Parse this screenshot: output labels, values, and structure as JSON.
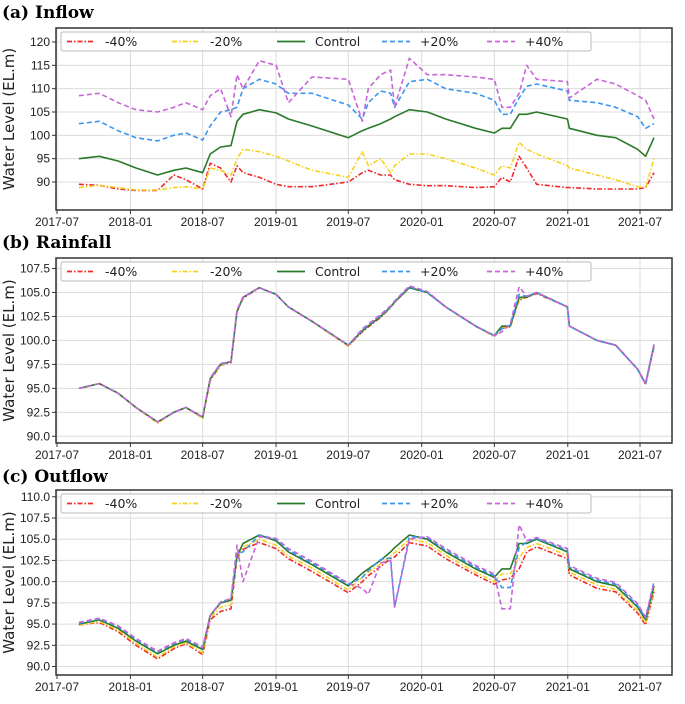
{
  "chart_data": [
    {
      "type": "line",
      "title": "(a) Inflow",
      "ylabel": "Water Level (EL.m)",
      "xlabel": "",
      "ylim": [
        84,
        123
      ],
      "yticks": [
        "90",
        "95",
        "100",
        "105",
        "110",
        "115",
        "120"
      ],
      "xticks": [
        "2017-07",
        "2018-01",
        "2018-07",
        "2019-01",
        "2019-07",
        "2020-01",
        "2020-07",
        "2021-01",
        "2021-07"
      ],
      "grid": true,
      "legend": "top-left",
      "x": [
        "2017-08-25",
        "2017-10-15",
        "2017-12-01",
        "2018-01-15",
        "2018-03-10",
        "2018-04-20",
        "2018-05-20",
        "2018-07-01",
        "2018-07-20",
        "2018-08-15",
        "2018-09-10",
        "2018-09-25",
        "2018-10-10",
        "2018-11-20",
        "2019-01-01",
        "2019-02-01",
        "2019-04-01",
        "2019-07-01",
        "2019-08-05",
        "2019-08-20",
        "2019-09-20",
        "2019-10-15",
        "2019-10-25",
        "2019-12-01",
        "2020-01-15",
        "2020-03-01",
        "2020-05-15",
        "2020-07-01",
        "2020-07-20",
        "2020-08-10",
        "2020-09-01",
        "2020-09-20",
        "2020-10-15",
        "2020-12-31",
        "2021-01-05",
        "2021-03-15",
        "2021-05-01",
        "2021-06-25",
        "2021-07-15",
        "2021-08-05"
      ],
      "series": [
        {
          "name": "-40%",
          "color": "#f0282a",
          "dash": "dashdot",
          "values": [
            89.5,
            89.3,
            88.5,
            88.2,
            88.2,
            91.5,
            90.5,
            88.5,
            94,
            93,
            90,
            93.5,
            92,
            91,
            89.5,
            89,
            89,
            90,
            92,
            92.5,
            91.5,
            91.5,
            90.5,
            89.5,
            89.2,
            89.2,
            88.8,
            89,
            91,
            90,
            95.5,
            93,
            89.5,
            88.8,
            88.8,
            88.5,
            88.5,
            88.5,
            88.8,
            92
          ]
        },
        {
          "name": "-20%",
          "color": "#f5d21c",
          "dash": "dashdot",
          "values": [
            88.8,
            89.3,
            88.8,
            88.3,
            88.3,
            88.8,
            89,
            88.5,
            93,
            92.5,
            91.5,
            95,
            97,
            96.5,
            95.5,
            94.5,
            92.5,
            91,
            96.5,
            93.5,
            95,
            92,
            93.5,
            96,
            96,
            95,
            93,
            91.5,
            93.5,
            93,
            98.5,
            97,
            96,
            93.5,
            93,
            91.5,
            90.5,
            89,
            88.8,
            95
          ]
        },
        {
          "name": "Control",
          "color": "#2a7a2a",
          "dash": "solid",
          "values": [
            95,
            95.5,
            94.5,
            93,
            91.5,
            92.5,
            93,
            92,
            96,
            97.5,
            97.8,
            103,
            104.5,
            105.5,
            104.8,
            103.5,
            102,
            99.5,
            101,
            101.5,
            102.5,
            103.5,
            104,
            105.5,
            105,
            103.5,
            101.5,
            100.5,
            101.5,
            101.5,
            104.5,
            104.5,
            105,
            103.5,
            101.5,
            100,
            99.5,
            97,
            95.5,
            99.5
          ]
        },
        {
          "name": "+20%",
          "color": "#3a96f0",
          "dash": "dashed",
          "values": [
            102.5,
            103,
            101,
            99.5,
            98.8,
            100,
            100.5,
            99,
            102,
            105,
            105.5,
            106,
            110,
            112,
            111,
            109,
            109,
            106.5,
            103.5,
            107,
            109.5,
            109,
            106,
            111.5,
            112,
            110,
            109,
            107.5,
            104.5,
            104.5,
            108,
            110.5,
            111,
            109.5,
            107.5,
            107,
            106,
            104,
            101.5,
            102.5
          ]
        },
        {
          "name": "+40%",
          "color": "#c865d8",
          "dash": "dashed",
          "values": [
            108.5,
            109,
            107,
            105.5,
            105,
            106,
            107,
            105.5,
            108.5,
            110,
            104,
            113,
            110,
            116,
            115,
            107,
            112.5,
            112,
            103,
            110,
            113,
            114,
            106,
            116.5,
            113,
            113,
            112.5,
            112,
            106,
            106,
            109,
            115,
            112,
            111.5,
            108,
            112,
            111,
            108.5,
            107.5,
            103.5
          ]
        }
      ]
    },
    {
      "type": "line",
      "title": "(b) Rainfall",
      "ylabel": "Water Level (EL.m)",
      "xlabel": "",
      "ylim": [
        89.3,
        108.6
      ],
      "yticks": [
        "90.0",
        "92.5",
        "95.0",
        "97.5",
        "100.0",
        "102.5",
        "105.0",
        "107.5"
      ],
      "xticks": [
        "2017-07",
        "2018-01",
        "2018-07",
        "2019-01",
        "2019-07",
        "2020-01",
        "2020-07",
        "2021-01",
        "2021-07"
      ],
      "grid": true,
      "legend": "top-left",
      "x": [
        "2017-08-25",
        "2017-10-15",
        "2017-12-01",
        "2018-01-15",
        "2018-03-10",
        "2018-04-20",
        "2018-05-20",
        "2018-07-01",
        "2018-07-20",
        "2018-08-15",
        "2018-09-10",
        "2018-09-25",
        "2018-10-10",
        "2018-11-20",
        "2019-01-01",
        "2019-02-01",
        "2019-04-01",
        "2019-07-01",
        "2019-08-05",
        "2019-08-20",
        "2019-09-20",
        "2019-10-15",
        "2019-10-25",
        "2019-12-01",
        "2020-01-15",
        "2020-03-01",
        "2020-05-15",
        "2020-07-01",
        "2020-07-20",
        "2020-08-10",
        "2020-09-01",
        "2020-09-20",
        "2020-10-15",
        "2020-12-31",
        "2021-01-05",
        "2021-03-15",
        "2021-05-01",
        "2021-06-25",
        "2021-07-15",
        "2021-08-05"
      ],
      "series": [
        {
          "name": "-40%",
          "color": "#f0282a",
          "dash": "dashdot",
          "values": [
            95,
            95.5,
            94.5,
            93,
            91.4,
            92.5,
            93,
            91.9,
            95.8,
            97.4,
            97.7,
            103,
            104.4,
            105.5,
            104.8,
            103.5,
            102,
            99.4,
            100.9,
            101.4,
            102.4,
            103.4,
            104,
            105.5,
            105,
            103.5,
            101.5,
            100.4,
            101.3,
            101.4,
            104.2,
            104.5,
            104.9,
            103.5,
            101.5,
            100,
            99.5,
            97,
            95.4,
            99.3
          ]
        },
        {
          "name": "-20%",
          "color": "#f5d21c",
          "dash": "dashdot",
          "values": [
            95,
            95.5,
            94.5,
            93,
            91.4,
            92.5,
            93,
            91.9,
            95.9,
            97.4,
            97.8,
            103,
            104.5,
            105.5,
            104.8,
            103.5,
            102,
            99.4,
            101,
            101.5,
            102.5,
            103.4,
            104,
            105.5,
            105,
            103.5,
            101.5,
            100.4,
            101.4,
            101.4,
            104.3,
            104.5,
            105,
            103.5,
            101.5,
            100,
            99.5,
            97,
            95.5,
            99.4
          ]
        },
        {
          "name": "Control",
          "color": "#2a7a2a",
          "dash": "solid",
          "values": [
            95,
            95.5,
            94.5,
            93,
            91.5,
            92.5,
            93,
            92,
            96,
            97.5,
            97.8,
            103,
            104.5,
            105.5,
            104.8,
            103.5,
            102,
            99.5,
            101,
            101.5,
            102.5,
            103.5,
            104,
            105.5,
            105,
            103.5,
            101.5,
            100.5,
            101.5,
            101.5,
            104.5,
            104.5,
            105,
            103.5,
            101.5,
            100,
            99.5,
            97,
            95.5,
            99.5
          ]
        },
        {
          "name": "+20%",
          "color": "#3a96f0",
          "dash": "dashed",
          "values": [
            95,
            95.5,
            94.5,
            93,
            91.5,
            92.5,
            93,
            92,
            96,
            97.5,
            97.8,
            103.1,
            104.5,
            105.5,
            104.8,
            103.5,
            102,
            99.5,
            101.1,
            101.6,
            102.6,
            103.5,
            104.1,
            105.6,
            105,
            103.5,
            101.5,
            100.5,
            101.2,
            101.6,
            104.8,
            104.6,
            105,
            103.5,
            101.5,
            100,
            99.5,
            97,
            95.5,
            99.6
          ]
        },
        {
          "name": "+40%",
          "color": "#c865d8",
          "dash": "dashed",
          "values": [
            95,
            95.5,
            94.5,
            93,
            91.5,
            92.5,
            93,
            92,
            96.1,
            97.6,
            97.8,
            103.2,
            104.5,
            105.5,
            104.8,
            103.5,
            102,
            99.5,
            101.2,
            101.7,
            102.7,
            103.6,
            104.1,
            105.7,
            105.1,
            103.5,
            101.5,
            100.5,
            100.9,
            101.7,
            105.6,
            104.6,
            105,
            103.5,
            101.5,
            100,
            99.5,
            97,
            95.5,
            99.6
          ]
        }
      ]
    },
    {
      "type": "line",
      "title": "(c) Outflow",
      "ylabel": "Water Level (EL.m)",
      "xlabel": "",
      "ylim": [
        89.0,
        110.8
      ],
      "yticks": [
        "90.0",
        "92.5",
        "95.0",
        "97.5",
        "100.0",
        "102.5",
        "105.0",
        "107.5",
        "110.0"
      ],
      "xticks": [
        "2017-07",
        "2018-01",
        "2018-07",
        "2019-01",
        "2019-07",
        "2020-01",
        "2020-07",
        "2021-01",
        "2021-07"
      ],
      "grid": true,
      "legend": "top-left",
      "x": [
        "2017-08-25",
        "2017-10-15",
        "2017-12-01",
        "2018-01-15",
        "2018-03-10",
        "2018-04-20",
        "2018-05-20",
        "2018-07-01",
        "2018-07-20",
        "2018-08-15",
        "2018-09-10",
        "2018-09-25",
        "2018-10-10",
        "2018-11-20",
        "2019-01-01",
        "2019-02-01",
        "2019-04-01",
        "2019-07-01",
        "2019-08-05",
        "2019-08-20",
        "2019-09-20",
        "2019-10-15",
        "2019-10-25",
        "2019-12-01",
        "2020-01-15",
        "2020-03-01",
        "2020-05-15",
        "2020-07-01",
        "2020-07-20",
        "2020-08-10",
        "2020-09-01",
        "2020-09-20",
        "2020-10-15",
        "2020-12-31",
        "2021-01-05",
        "2021-03-15",
        "2021-05-01",
        "2021-06-25",
        "2021-07-15",
        "2021-08-05"
      ],
      "series": [
        {
          "name": "-40%",
          "color": "#f0282a",
          "dash": "dashdot",
          "values": [
            94.9,
            95.2,
            94.1,
            92.5,
            90.9,
            92.1,
            92.7,
            91.4,
            95.5,
            96.5,
            96.8,
            102.8,
            103.8,
            104.6,
            103.9,
            102.7,
            101.2,
            98.7,
            100,
            100.7,
            101.8,
            102.7,
            102.9,
            104.6,
            104.2,
            102.7,
            100.8,
            99.7,
            100.2,
            100.4,
            101.5,
            103.5,
            104.1,
            102.7,
            100.8,
            99.2,
            98.8,
            96.3,
            94.9,
            98.8
          ]
        },
        {
          "name": "-20%",
          "color": "#f5d21c",
          "dash": "dashdot",
          "values": [
            94.9,
            95.3,
            94.3,
            92.7,
            91.1,
            92.3,
            92.8,
            91.6,
            95.7,
            97,
            97.3,
            102.9,
            104.1,
            105,
            104.3,
            103,
            101.6,
            99,
            100.5,
            101.1,
            102.1,
            103,
            103.4,
            105,
            104.6,
            103.1,
            101.1,
            100,
            100.9,
            100.9,
            102.8,
            104,
            104.5,
            103.1,
            101.1,
            99.6,
            99.1,
            96.6,
            95.1,
            99.1
          ]
        },
        {
          "name": "Control",
          "color": "#2a7a2a",
          "dash": "solid",
          "values": [
            95,
            95.5,
            94.5,
            93,
            91.5,
            92.5,
            93,
            92,
            96,
            97.5,
            97.8,
            103,
            104.5,
            105.5,
            104.8,
            103.5,
            102,
            99.5,
            101,
            101.5,
            102.5,
            103.5,
            104,
            105.5,
            105,
            103.5,
            101.5,
            100.5,
            101.5,
            101.5,
            104.5,
            104.5,
            105,
            103.5,
            101.5,
            100,
            99.5,
            97,
            95.5,
            99.5
          ]
        },
        {
          "name": "+20%",
          "color": "#3a96f0",
          "dash": "dashed",
          "values": [
            95.1,
            95.6,
            94.7,
            93.2,
            91.7,
            92.7,
            93.2,
            92.2,
            96,
            97.6,
            98,
            103.3,
            103.5,
            105.5,
            105,
            103.7,
            102.2,
            99.7,
            100.5,
            101.3,
            102.6,
            102.8,
            97,
            105.3,
            105.2,
            103.7,
            101.7,
            100.7,
            99.3,
            99.3,
            104,
            104.7,
            105.1,
            103.7,
            101.7,
            100.2,
            99.7,
            97.2,
            95.7,
            100
          ]
        },
        {
          "name": "+40%",
          "color": "#c865d8",
          "dash": "dashed",
          "values": [
            95.2,
            95.7,
            94.8,
            93.3,
            91.8,
            92.8,
            93.3,
            92.3,
            96,
            97.6,
            98,
            104.3,
            100,
            105.3,
            105.1,
            103.9,
            102.4,
            99.8,
            99.2,
            98.5,
            102.2,
            102.5,
            97,
            105,
            105.3,
            103.9,
            101.9,
            100.9,
            96.8,
            96.8,
            106.7,
            104.8,
            105.2,
            103.9,
            101.9,
            100.4,
            99.9,
            97.4,
            95.8,
            99.9
          ]
        }
      ]
    }
  ]
}
